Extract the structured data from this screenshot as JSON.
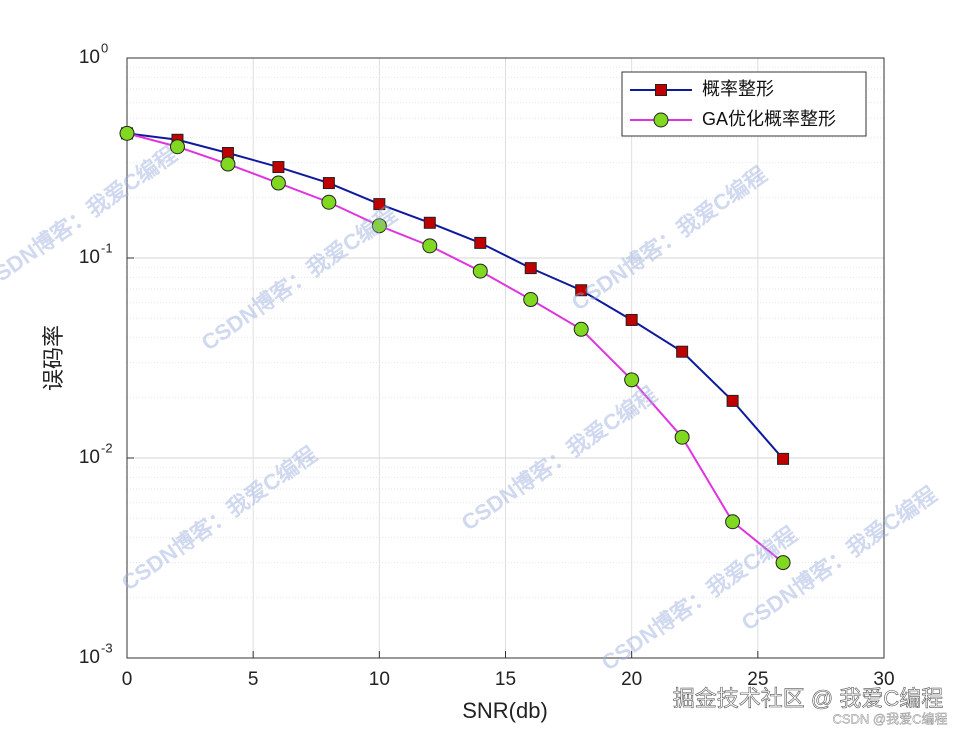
{
  "chart_data": {
    "type": "line",
    "y_scale": "log",
    "grid": true,
    "minor_grid": true,
    "legend_position": "upper right",
    "xlabel": "SNR(db)",
    "ylabel": "误码率",
    "x": [
      0,
      2,
      4,
      6,
      8,
      10,
      12,
      14,
      16,
      18,
      20,
      22,
      24,
      26
    ],
    "series": [
      {
        "name": "概率整形",
        "color": "#0d1a9e",
        "marker": "square",
        "marker_color": "#c00000",
        "values": [
          0.42,
          0.39,
          0.335,
          0.285,
          0.237,
          0.186,
          0.15,
          0.119,
          0.089,
          0.069,
          0.049,
          0.034,
          0.0193,
          0.0099
        ]
      },
      {
        "name": "GA优化概率整形",
        "color": "#e033e0",
        "marker": "circle",
        "marker_color": "#80d820",
        "values": [
          0.42,
          0.36,
          0.295,
          0.237,
          0.19,
          0.145,
          0.115,
          0.086,
          0.062,
          0.044,
          0.0246,
          0.0127,
          0.0048,
          0.003
        ]
      }
    ],
    "xlim": [
      0,
      30
    ],
    "xticks": [
      0,
      5,
      10,
      15,
      20,
      25,
      30
    ],
    "ylim": [
      0.001,
      1
    ],
    "yticks": [
      {
        "value": 0.001,
        "label": "10",
        "sup": "-3"
      },
      {
        "value": 0.01,
        "label": "10",
        "sup": "-2"
      },
      {
        "value": 0.1,
        "label": "10",
        "sup": "-1"
      },
      {
        "value": 1,
        "label": "10",
        "sup": "0"
      }
    ],
    "watermarks": [
      "CSDN博客：我爱C编程",
      "CSDN博客：我爱C编程",
      "CSDN博客：我爱C编程",
      "CSDN博客：我爱C编程",
      "CSDN博客：我爱C编程",
      "CSDN博客：我爱C编程",
      "CSDN博客：我爱C编程"
    ],
    "footer": "掘金技术社区 @ 我爱C编程",
    "footer_small": "CSDN @我爱C编程"
  }
}
